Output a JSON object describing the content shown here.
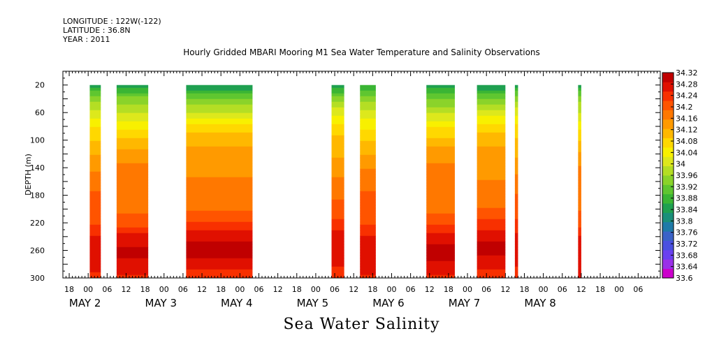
{
  "header": {
    "longitude": "LONGITUDE : 122W(-122)",
    "latitude": "LATITUDE : 36.8N",
    "year": "YEAR : 2011"
  },
  "chart_data": {
    "type": "heatmap",
    "title": "Hourly Gridded MBARI Mooring M1 Sea Water Temperature and Salinity Observations",
    "bottom_title": "Sea Water Salinity",
    "ylabel": "DEPTH (m)",
    "y_range": [
      300,
      0
    ],
    "y_ticks": [
      20,
      60,
      100,
      140,
      180,
      220,
      260,
      300
    ],
    "x_time_range_hours": [
      -8,
      181
    ],
    "x_ticks": [
      {
        "h": -6,
        "label": "18"
      },
      {
        "h": 0,
        "label": "00"
      },
      {
        "h": 6,
        "label": "06"
      },
      {
        "h": 12,
        "label": "12"
      },
      {
        "h": 18,
        "label": "18"
      },
      {
        "h": 24,
        "label": "00"
      },
      {
        "h": 30,
        "label": "06"
      },
      {
        "h": 36,
        "label": "12"
      },
      {
        "h": 42,
        "label": "18"
      },
      {
        "h": 48,
        "label": "00"
      },
      {
        "h": 54,
        "label": "06"
      },
      {
        "h": 60,
        "label": "12"
      },
      {
        "h": 66,
        "label": "18"
      },
      {
        "h": 72,
        "label": "00"
      },
      {
        "h": 78,
        "label": "06"
      },
      {
        "h": 84,
        "label": "12"
      },
      {
        "h": 90,
        "label": "18"
      },
      {
        "h": 96,
        "label": "00"
      },
      {
        "h": 102,
        "label": "06"
      },
      {
        "h": 108,
        "label": "12"
      },
      {
        "h": 114,
        "label": "18"
      },
      {
        "h": 120,
        "label": "00"
      },
      {
        "h": 126,
        "label": "06"
      },
      {
        "h": 132,
        "label": "12"
      },
      {
        "h": 138,
        "label": "18"
      },
      {
        "h": 144,
        "label": "00"
      },
      {
        "h": 150,
        "label": "06"
      },
      {
        "h": 156,
        "label": "12"
      },
      {
        "h": 162,
        "label": "18"
      },
      {
        "h": 168,
        "label": "00"
      },
      {
        "h": 174,
        "label": "06"
      }
    ],
    "day_labels": [
      {
        "h": -1,
        "label": "MAY 2"
      },
      {
        "h": 23,
        "label": "MAY 3"
      },
      {
        "h": 47,
        "label": "MAY 4"
      },
      {
        "h": 71,
        "label": "MAY 5"
      },
      {
        "h": 95,
        "label": "MAY 6"
      },
      {
        "h": 119,
        "label": "MAY 7"
      },
      {
        "h": 143,
        "label": "MAY 8"
      }
    ],
    "data_segments": [
      {
        "start_h": 0.5,
        "end_h": 4
      },
      {
        "start_h": 9,
        "end_h": 19
      },
      {
        "start_h": 31,
        "end_h": 52
      },
      {
        "start_h": 77,
        "end_h": 81
      },
      {
        "start_h": 86,
        "end_h": 91
      },
      {
        "start_h": 107,
        "end_h": 116
      },
      {
        "start_h": 123,
        "end_h": 132
      },
      {
        "start_h": 135,
        "end_h": 136
      },
      {
        "start_h": 155,
        "end_h": 156
      }
    ],
    "salinity_profile": [
      {
        "depth": 20,
        "value": 33.84
      },
      {
        "depth": 40,
        "value": 33.94
      },
      {
        "depth": 60,
        "value": 34.0
      },
      {
        "depth": 80,
        "value": 34.06
      },
      {
        "depth": 100,
        "value": 34.1
      },
      {
        "depth": 120,
        "value": 34.13
      },
      {
        "depth": 140,
        "value": 34.15
      },
      {
        "depth": 160,
        "value": 34.17
      },
      {
        "depth": 180,
        "value": 34.18
      },
      {
        "depth": 200,
        "value": 34.19
      },
      {
        "depth": 220,
        "value": 34.22
      },
      {
        "depth": 240,
        "value": 34.27
      },
      {
        "depth": 260,
        "value": 34.29
      },
      {
        "depth": 280,
        "value": 34.27
      },
      {
        "depth": 300,
        "value": 34.24
      }
    ],
    "colorbar": {
      "min": 33.6,
      "max": 34.32,
      "labels": [
        "34.32",
        "34.28",
        "34.24",
        "34.2",
        "34.16",
        "34.12",
        "34.08",
        "34.04",
        "34",
        "33.96",
        "33.92",
        "33.88",
        "33.84",
        "33.8",
        "33.76",
        "33.72",
        "33.68",
        "33.64",
        "33.6"
      ],
      "colors": [
        "#cc00cc",
        "#9a30e8",
        "#6a40f0",
        "#4a50e0",
        "#3a62c8",
        "#1f7aa8",
        "#1a8f7a",
        "#1fa050",
        "#3ab534",
        "#5fc630",
        "#8ad32a",
        "#b4de24",
        "#dde81c",
        "#f8f000",
        "#ffd800",
        "#ffb800",
        "#ff9a00",
        "#ff7800",
        "#ff5400",
        "#f83000",
        "#e01000",
        "#c00000"
      ]
    }
  }
}
